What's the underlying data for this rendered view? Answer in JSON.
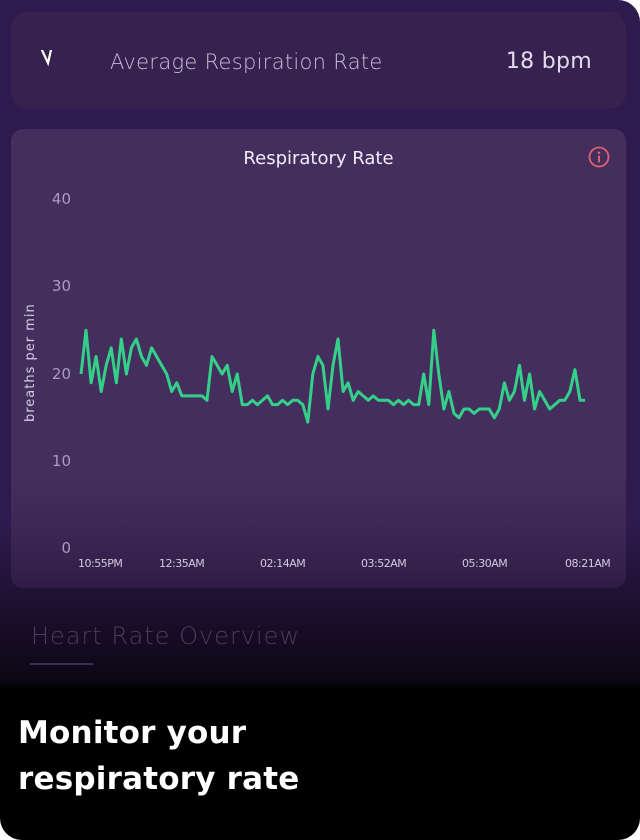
{
  "summary_card": {
    "icon": "pulse-icon",
    "label": "Average Respiration Rate",
    "value": "18 bpm"
  },
  "chart_card": {
    "title": "Respiratory Rate",
    "info_icon": "info-icon",
    "info_icon_color": "#e0626e",
    "line_color": "#34d08a"
  },
  "section": {
    "title": "Heart Rate Overview"
  },
  "caption": {
    "line1": "Monitor your",
    "line2": "respiratory rate"
  },
  "chart_data": {
    "type": "line",
    "title": "Respiratory Rate",
    "xlabel": "",
    "ylabel": "breaths per min",
    "ylim": [
      0,
      40
    ],
    "yticks": [
      "0",
      "10",
      "20",
      "30",
      "40"
    ],
    "xticks": [
      "10:55PM",
      "12:35AM",
      "02:14AM",
      "03:52AM",
      "05:30AM",
      "08:21AM"
    ],
    "grid": false,
    "legend": null,
    "series": [
      {
        "name": "Respiratory Rate",
        "color": "#34d08a",
        "x": [
          0,
          1,
          2,
          3,
          4,
          5,
          6,
          7,
          8,
          9,
          10,
          11,
          12,
          13,
          14,
          15,
          16,
          17,
          18,
          19,
          20,
          21,
          22,
          23,
          24,
          25,
          26,
          27,
          28,
          29,
          30,
          31,
          32,
          33,
          34,
          35,
          36,
          37,
          38,
          39,
          40,
          41,
          42,
          43,
          44,
          45,
          46,
          47,
          48,
          49,
          50,
          51,
          52,
          53,
          54,
          55,
          56,
          57,
          58,
          59,
          60,
          61,
          62,
          63,
          64,
          65,
          66,
          67,
          68,
          69,
          70,
          71,
          72,
          73,
          74,
          75,
          76,
          77,
          78,
          79,
          80,
          81,
          82,
          83,
          84,
          85,
          86,
          87,
          88,
          89,
          90,
          91,
          92,
          93,
          94,
          95,
          96,
          97,
          98,
          99,
          100
        ],
        "values": [
          20,
          25,
          19,
          22,
          18,
          21,
          23,
          19,
          24,
          20,
          23,
          24,
          22,
          21,
          23,
          22,
          21,
          20,
          18,
          19,
          17.5,
          17.5,
          17.5,
          17.5,
          17.5,
          17,
          22,
          21,
          20,
          21,
          18,
          20,
          16.5,
          16.5,
          17,
          16.5,
          17,
          17.5,
          16.5,
          16.5,
          17,
          16.5,
          17,
          17,
          16.5,
          14.5,
          20,
          22,
          21,
          16,
          21,
          24,
          18,
          19,
          17,
          18,
          17.5,
          17,
          17.5,
          17,
          17,
          17,
          16.5,
          17,
          16.5,
          17,
          16.5,
          16.5,
          20,
          16.5,
          25,
          20,
          16,
          18,
          15.5,
          15,
          16,
          16,
          15.5,
          16,
          16,
          16,
          15,
          16,
          19,
          17,
          18,
          21,
          17,
          20,
          16,
          18,
          17,
          16,
          16.5,
          17,
          17,
          18,
          20.5,
          17,
          17
        ]
      }
    ]
  }
}
